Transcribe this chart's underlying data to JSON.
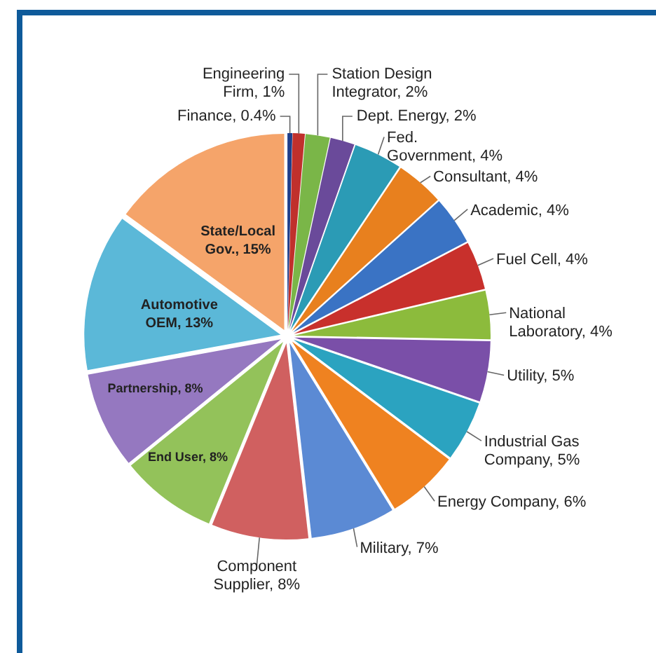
{
  "chart_data": {
    "type": "pie",
    "categories": [
      "Finance",
      "Engineering Firm",
      "Station Design Integrator",
      "Dept. Energy",
      "Fed. Government",
      "Consultant",
      "Academic",
      "Fuel Cell",
      "National Laboratory",
      "Utility",
      "Industrial Gas Company",
      "Energy Company",
      "Military",
      "Component Supplier",
      "End User",
      "Partnership",
      "Automotive OEM",
      "State/Local Gov."
    ],
    "values": [
      0.4,
      1,
      2,
      2,
      4,
      4,
      4,
      4,
      4,
      5,
      5,
      6,
      7,
      8,
      8,
      8,
      13,
      15
    ],
    "value_labels": [
      "0.4%",
      "1%",
      "2%",
      "2%",
      "4%",
      "4%",
      "4%",
      "4%",
      "4%",
      "5%",
      "5%",
      "6%",
      "7%",
      "8%",
      "8%",
      "8%",
      "13%",
      "15%"
    ],
    "colors": [
      "#1f3e8a",
      "#c0302c",
      "#7ab648",
      "#6a4a9a",
      "#2b9bb5",
      "#e8801e",
      "#3a73c4",
      "#c8302c",
      "#8cbb3c",
      "#7a4fa8",
      "#2ba3c0",
      "#ef8220",
      "#5b8ad4",
      "#d06060",
      "#93c25a",
      "#9578c0",
      "#5bb8d8",
      "#f5a46a"
    ]
  }
}
